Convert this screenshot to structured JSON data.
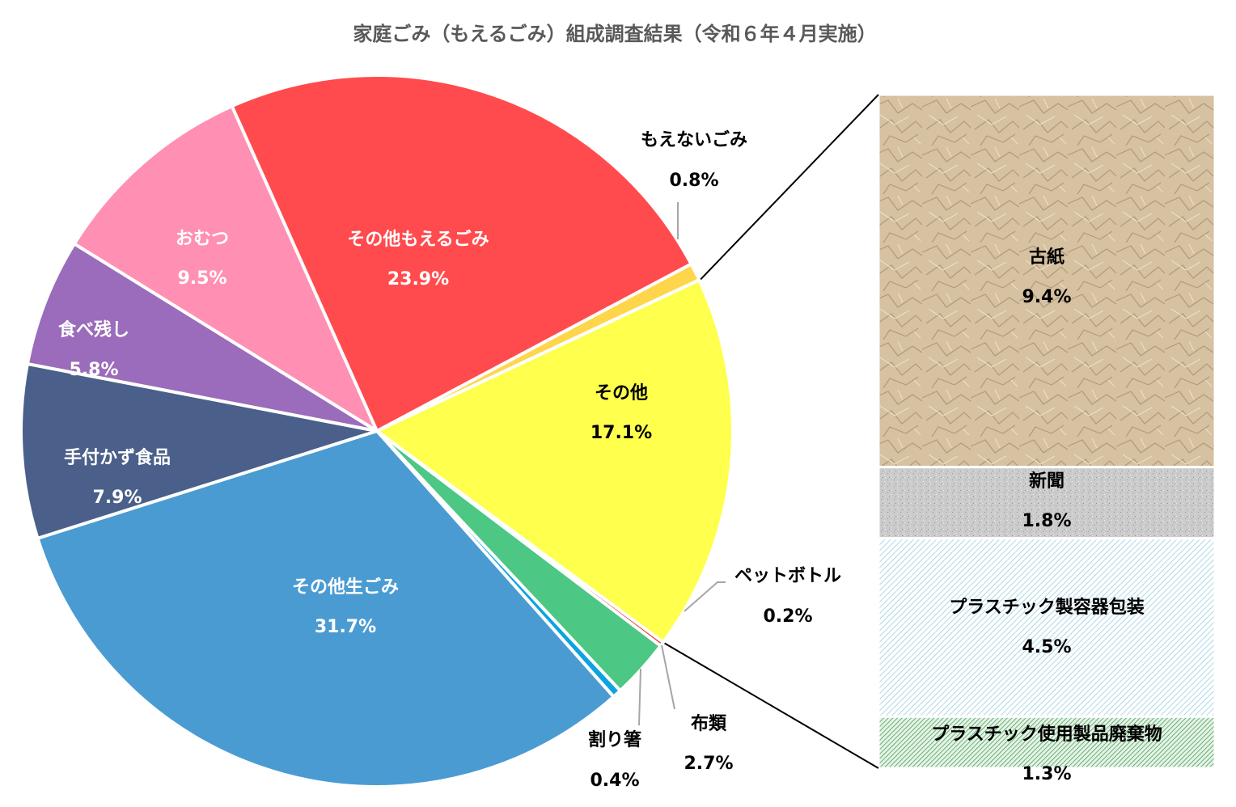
{
  "chart_data": {
    "type": "bar-of-pie",
    "title": "家庭ごみ（もえるごみ）組成調査結果（令和６年４月実施）",
    "pie": {
      "slices": [
        {
          "name": "もえないごみ",
          "value": 0.8,
          "value_label": "0.8%",
          "color": "#FFD54A"
        },
        {
          "name": "その他",
          "value": 17.1,
          "value_label": "17.1%",
          "color": "#FFFF4D"
        },
        {
          "name": "ペットボトル",
          "value": 0.2,
          "value_label": "0.2%",
          "color": "#E53935"
        },
        {
          "name": "布類",
          "value": 2.7,
          "value_label": "2.7%",
          "color": "#4CC784"
        },
        {
          "name": "割り箸",
          "value": 0.4,
          "value_label": "0.4%",
          "color": "#0BA3E0"
        },
        {
          "name": "その他生ごみ",
          "value": 31.7,
          "value_label": "31.7%",
          "color": "#4B9BD3"
        },
        {
          "name": "手付かず食品",
          "value": 7.9,
          "value_label": "7.9%",
          "color": "#4A5F8A"
        },
        {
          "name": "食べ残し",
          "value": 5.8,
          "value_label": "5.8%",
          "color": "#9A6CBB"
        },
        {
          "name": "おむつ",
          "value": 9.5,
          "value_label": "9.5%",
          "color": "#FF90B3"
        },
        {
          "name": "その他もえるごみ",
          "value": 23.9,
          "value_label": "23.9%",
          "color": "#FF4B4D"
        }
      ]
    },
    "bar": {
      "segments": [
        {
          "name": "古紙",
          "value": 9.4,
          "value_label": "9.4%",
          "color": "#D4BE9C"
        },
        {
          "name": "新聞",
          "value": 1.8,
          "value_label": "1.8%",
          "color": "#C8C8C8"
        },
        {
          "name": "プラスチック製容器包装",
          "value": 4.5,
          "value_label": "4.5%",
          "color": "#CFE9F2"
        },
        {
          "name": "プラスチック使用製品廃棄物",
          "value": 1.3,
          "value_label": "1.3%",
          "color": "#7DBE8A"
        }
      ]
    }
  }
}
